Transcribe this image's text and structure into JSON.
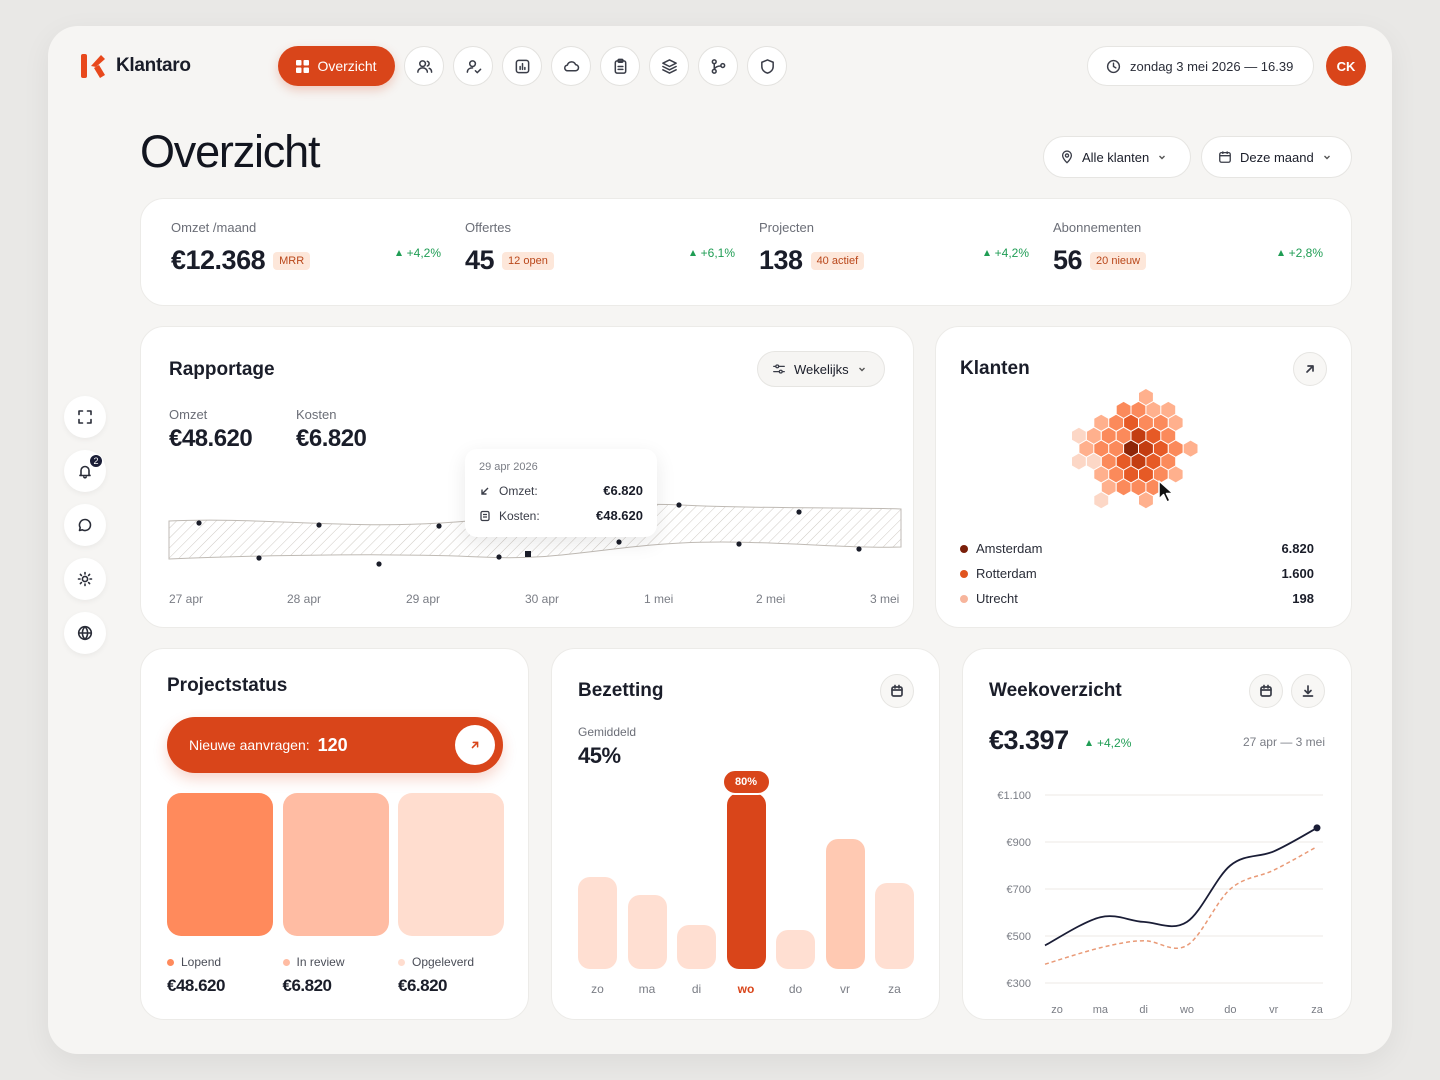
{
  "app": {
    "name": "Klantaro"
  },
  "nav": {
    "active_label": "Overzicht",
    "icons": [
      "users-icon",
      "user-check-icon",
      "report-icon",
      "cloud-icon",
      "clipboard-icon",
      "layers-icon",
      "git-branch-icon",
      "shield-icon"
    ]
  },
  "header": {
    "datetime": "zondag 3 mei 2026 — 16.39",
    "avatar": "CK"
  },
  "page": {
    "title": "Overzicht",
    "filter_clients": "Alle klanten",
    "filter_period": "Deze maand"
  },
  "sidebar": {
    "notifications_count": "2"
  },
  "kpis": [
    {
      "label": "Omzet /maand",
      "value": "€12.368",
      "tag": "MRR",
      "change": "+4,2%"
    },
    {
      "label": "Offertes",
      "value": "45",
      "tag": "12 open",
      "change": "+6,1%"
    },
    {
      "label": "Projecten",
      "value": "138",
      "tag": "40 actief",
      "change": "+4,2%"
    },
    {
      "label": "Abonnementen",
      "value": "56",
      "tag": "20 nieuw",
      "change": "+2,8%"
    }
  ],
  "rapportage": {
    "title": "Rapportage",
    "period": "Wekelijks",
    "omzet_label": "Omzet",
    "omzet_value": "€48.620",
    "kosten_label": "Kosten",
    "kosten_value": "€6.820",
    "tooltip": {
      "date": "29 apr 2026",
      "omzet_label": "Omzet:",
      "omzet_value": "€6.820",
      "kosten_label": "Kosten:",
      "kosten_value": "€48.620"
    },
    "x_labels": [
      "27 apr",
      "28 apr",
      "29 apr",
      "30 apr",
      "1 mei",
      "2 mei",
      "3 mei"
    ]
  },
  "klanten": {
    "title": "Klanten",
    "items": [
      {
        "name": "Amsterdam",
        "value": "6.820",
        "color": "#7a1f0a"
      },
      {
        "name": "Rotterdam",
        "value": "1.600",
        "color": "#e0541f"
      },
      {
        "name": "Utrecht",
        "value": "198",
        "color": "#f7b59c"
      }
    ]
  },
  "projectstatus": {
    "title": "Projectstatus",
    "cta_label": "Nieuwe aanvragen:",
    "cta_value": "120",
    "columns": [
      {
        "label": "Lopend",
        "value": "€48.620",
        "color": "#ff8a5c"
      },
      {
        "label": "In review",
        "value": "€6.820",
        "color": "#ffbca3"
      },
      {
        "label": "Opgeleverd",
        "value": "€6.820",
        "color": "#ffddcf"
      }
    ]
  },
  "bezetting": {
    "title": "Bezetting",
    "avg_label": "Gemiddeld",
    "avg_value": "45%",
    "highlight_label": "80%",
    "chart_data": {
      "type": "bar",
      "categories": [
        "zo",
        "ma",
        "di",
        "wo",
        "do",
        "vr",
        "za"
      ],
      "values": [
        52,
        42,
        25,
        100,
        22,
        74,
        49
      ],
      "highlight_index": 3
    }
  },
  "weekoverzicht": {
    "title": "Weekoverzicht",
    "value": "€3.397",
    "change": "+4,2%",
    "range": "27 apr — 3 mei",
    "chart_data": {
      "type": "line",
      "categories": [
        "zo",
        "ma",
        "di",
        "wo",
        "do",
        "vr",
        "za"
      ],
      "y_ticks": [
        "€1.100",
        "€900",
        "€700",
        "€500",
        "€300"
      ],
      "ylim": [
        300,
        1100
      ],
      "series": [
        {
          "values": [
            460,
            580,
            560,
            560,
            800,
            860,
            960
          ],
          "color": "#1a1d36"
        },
        {
          "values": [
            380,
            450,
            480,
            460,
            700,
            780,
            880
          ],
          "color": "#e99a77"
        }
      ]
    }
  }
}
